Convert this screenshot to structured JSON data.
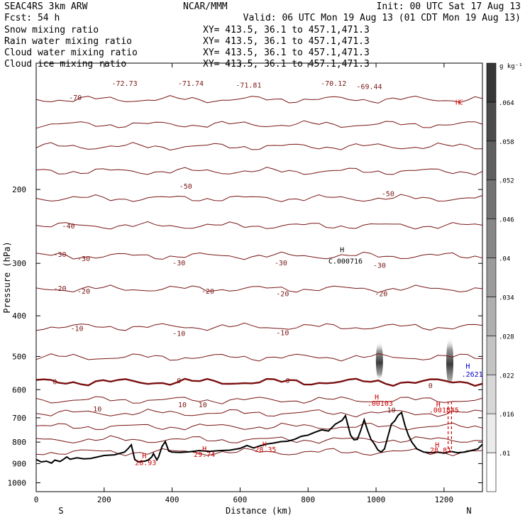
{
  "header": {
    "model": "SEAC4RS  3km ARW",
    "org": "NCAR/MMM",
    "init": "Init: 00 UTC Sat 17 Aug 13",
    "fcst": "Fcst:   54 h",
    "valid": "Valid: 06 UTC Mon 19 Aug 13 (01 CDT Mon 19 Aug 13)"
  },
  "fields": [
    {
      "name": "Snow mixing ratio",
      "xy": "XY=  413.5, 36.1 to 457.1,471.3",
      "color": "#000000"
    },
    {
      "name": "Rain water mixing ratio",
      "xy": "XY=  413.5, 36.1 to 457.1,471.3",
      "color": "#cc0000"
    },
    {
      "name": "Cloud water mixing ratio",
      "xy": "XY=  413.5, 36.1 to 457.1,471.3",
      "color": "#0000cc"
    },
    {
      "name": "Cloud ice mixing ratio",
      "xy": "XY=  413.5, 36.1 to 457.1,471.3",
      "color": "#000000"
    }
  ],
  "colors": {
    "isotherm": "#7a1515",
    "zero_isotherm": "#7a1010",
    "terrain": "#000000",
    "rain": "#cc0000",
    "cloud_water": "#0000cc"
  },
  "chart_data": {
    "type": "cross-section",
    "xlabel": "Distance (km)",
    "ylabel": "Pressure (hPa)",
    "xlim": [
      0,
      1313
    ],
    "ylim": [
      1050,
      100
    ],
    "y_scale": "log",
    "x_ticks": [
      "0",
      "200",
      "400",
      "600",
      "800",
      "1000",
      "1200"
    ],
    "y_ticks": [
      "200",
      "300",
      "400",
      "500",
      "600",
      "700",
      "800",
      "900",
      "1000"
    ],
    "end_labels": {
      "left": "S",
      "right": "N"
    },
    "colorbar": {
      "unit": "g kg⁻¹",
      "ticks": [
        ".01",
        ".016",
        ".022",
        ".028",
        ".034",
        ".04",
        ".046",
        ".052",
        ".058",
        ".064"
      ]
    },
    "isotherms": [
      {
        "p_left": 122,
        "labels": [
          {
            "x": 115,
            "p": 121,
            "text": "-70"
          },
          {
            "x": 260,
            "p": 112,
            "text": "-72.73"
          },
          {
            "x": 455,
            "p": 112,
            "text": "-71.74"
          },
          {
            "x": 625,
            "p": 113,
            "text": "-71.81"
          },
          {
            "x": 875,
            "p": 112,
            "text": "-70.12"
          },
          {
            "x": 980,
            "p": 114,
            "text": "-69.44"
          }
        ]
      },
      {
        "p_left": 140,
        "labels": []
      },
      {
        "p_left": 158,
        "labels": []
      },
      {
        "p_left": 181,
        "labels": [
          {
            "x": 440,
            "p": 197,
            "text": "-50"
          },
          {
            "x": 1035,
            "p": 205,
            "text": "-50"
          }
        ]
      },
      {
        "p_left": 210,
        "labels": []
      },
      {
        "p_left": 244,
        "labels": [
          {
            "x": 95,
            "p": 245,
            "text": "-40"
          }
        ]
      },
      {
        "p_left": 288,
        "labels": [
          {
            "x": 70,
            "p": 286,
            "text": "-30"
          },
          {
            "x": 140,
            "p": 293,
            "text": "-30"
          },
          {
            "x": 420,
            "p": 300,
            "text": "-30"
          },
          {
            "x": 720,
            "p": 300,
            "text": "-30"
          },
          {
            "x": 1010,
            "p": 304,
            "text": "-30"
          }
        ]
      },
      {
        "p_left": 345,
        "labels": [
          {
            "x": 70,
            "p": 345,
            "text": "-20"
          },
          {
            "x": 140,
            "p": 350,
            "text": "-20"
          },
          {
            "x": 505,
            "p": 350,
            "text": "-20"
          },
          {
            "x": 725,
            "p": 355,
            "text": "-20"
          },
          {
            "x": 1015,
            "p": 355,
            "text": "-20"
          }
        ]
      },
      {
        "p_left": 425,
        "labels": [
          {
            "x": 120,
            "p": 430,
            "text": "-10"
          },
          {
            "x": 420,
            "p": 442,
            "text": "-10"
          },
          {
            "x": 725,
            "p": 440,
            "text": "-10"
          }
        ]
      },
      {
        "p_left": 502,
        "labels": []
      },
      {
        "p_left": 575,
        "bold": true,
        "labels": [
          {
            "x": 55,
            "p": 575,
            "text": "0"
          },
          {
            "x": 420,
            "p": 572,
            "text": "0"
          },
          {
            "x": 740,
            "p": 572,
            "text": "0"
          },
          {
            "x": 1160,
            "p": 588,
            "text": "0"
          }
        ]
      },
      {
        "p_left": 635,
        "labels": []
      },
      {
        "p_left": 682,
        "labels": [
          {
            "x": 180,
            "p": 668,
            "text": "10"
          },
          {
            "x": 430,
            "p": 653,
            "text": "10"
          },
          {
            "x": 490,
            "p": 653,
            "text": "10"
          },
          {
            "x": 1045,
            "p": 673,
            "text": "10"
          }
        ]
      },
      {
        "p_left": 735,
        "labels": []
      },
      {
        "p_left": 790,
        "labels": []
      },
      {
        "p_left": 845,
        "labels": []
      }
    ],
    "terrain": {
      "x": [
        0,
        15,
        30,
        45,
        55,
        70,
        80,
        90,
        100,
        120,
        140,
        160,
        180,
        200,
        230,
        260,
        270,
        280,
        285,
        290,
        300,
        320,
        330,
        340,
        345,
        350,
        355,
        360,
        370,
        380,
        390,
        400,
        420,
        450,
        480,
        510,
        540,
        570,
        600,
        620,
        640,
        660,
        680,
        700,
        720,
        740,
        760,
        780,
        800,
        820,
        840,
        860,
        880,
        900,
        910,
        918,
        925,
        935,
        945,
        955,
        965,
        975,
        985,
        995,
        1005,
        1015,
        1025,
        1035,
        1045,
        1055,
        1065,
        1075,
        1085,
        1095,
        1105,
        1120,
        1140,
        1160,
        1180,
        1200,
        1220,
        1240,
        1260,
        1280,
        1300,
        1313
      ],
      "p": [
        880,
        892,
        888,
        898,
        883,
        890,
        880,
        868,
        879,
        872,
        877,
        875,
        868,
        861,
        858,
        845,
        830,
        812,
        845,
        880,
        892,
        888,
        882,
        868,
        852,
        867,
        882,
        868,
        820,
        798,
        840,
        845,
        847,
        844,
        838,
        842,
        838,
        836,
        828,
        815,
        826,
        816,
        808,
        804,
        798,
        796,
        788,
        775,
        770,
        758,
        748,
        753,
        725,
        710,
        692,
        733,
        770,
        790,
        788,
        750,
        708,
        750,
        788,
        808,
        835,
        845,
        830,
        775,
        725,
        712,
        690,
        680,
        730,
        770,
        800,
        830,
        845,
        848,
        845,
        850,
        842,
        848,
        845,
        838,
        830,
        810
      ]
    },
    "rain_columns": [
      {
        "x": 1212,
        "p_top": 640,
        "p_bottom": 845
      },
      {
        "x": 1222,
        "p_top": 640,
        "p_bottom": 845
      }
    ],
    "snow_columns": [
      {
        "x": 1010,
        "p_top": 460,
        "p_bottom": 570
      },
      {
        "x": 1217,
        "p_top": 450,
        "p_bottom": 590
      }
    ],
    "annotations": [
      {
        "text": "H",
        "x": 900,
        "p": 279,
        "color": "#000000"
      },
      {
        "text": "C.000716",
        "x": 910,
        "p": 297,
        "color": "#000000"
      },
      {
        "text": "H",
        "x": 1240,
        "p": 124,
        "color": "#cc0000"
      },
      {
        "text": "C",
        "x": 1250,
        "p": 124,
        "color": "#cc0000"
      },
      {
        "text": "H",
        "x": 1002,
        "p": 626,
        "color": "#cc0000"
      },
      {
        "text": ".00103",
        "x": 1012,
        "p": 648,
        "color": "#cc0000"
      },
      {
        "text": "H",
        "x": 1183,
        "p": 652,
        "color": "#cc0000"
      },
      {
        "text": ".001845",
        "x": 1200,
        "p": 673,
        "color": "#cc0000"
      },
      {
        "text": "H",
        "x": 1270,
        "p": 528,
        "color": "#0000cc"
      },
      {
        "text": ".2621",
        "x": 1283,
        "p": 552,
        "color": "#0000cc"
      },
      {
        "text": "H",
        "x": 318,
        "p": 865,
        "color": "#cc0000"
      },
      {
        "text": "28.93",
        "x": 322,
        "p": 897,
        "color": "#cc0000"
      },
      {
        "text": "H",
        "x": 495,
        "p": 831,
        "color": "#cc0000"
      },
      {
        "text": "29.74",
        "x": 495,
        "p": 857,
        "color": "#cc0000"
      },
      {
        "text": "H",
        "x": 672,
        "p": 810,
        "color": "#cc0000"
      },
      {
        "text": "28.35",
        "x": 675,
        "p": 835,
        "color": "#cc0000"
      },
      {
        "text": "H",
        "x": 1180,
        "p": 813,
        "color": "#cc0000"
      },
      {
        "text": "28.81",
        "x": 1190,
        "p": 838,
        "color": "#cc0000"
      }
    ]
  }
}
